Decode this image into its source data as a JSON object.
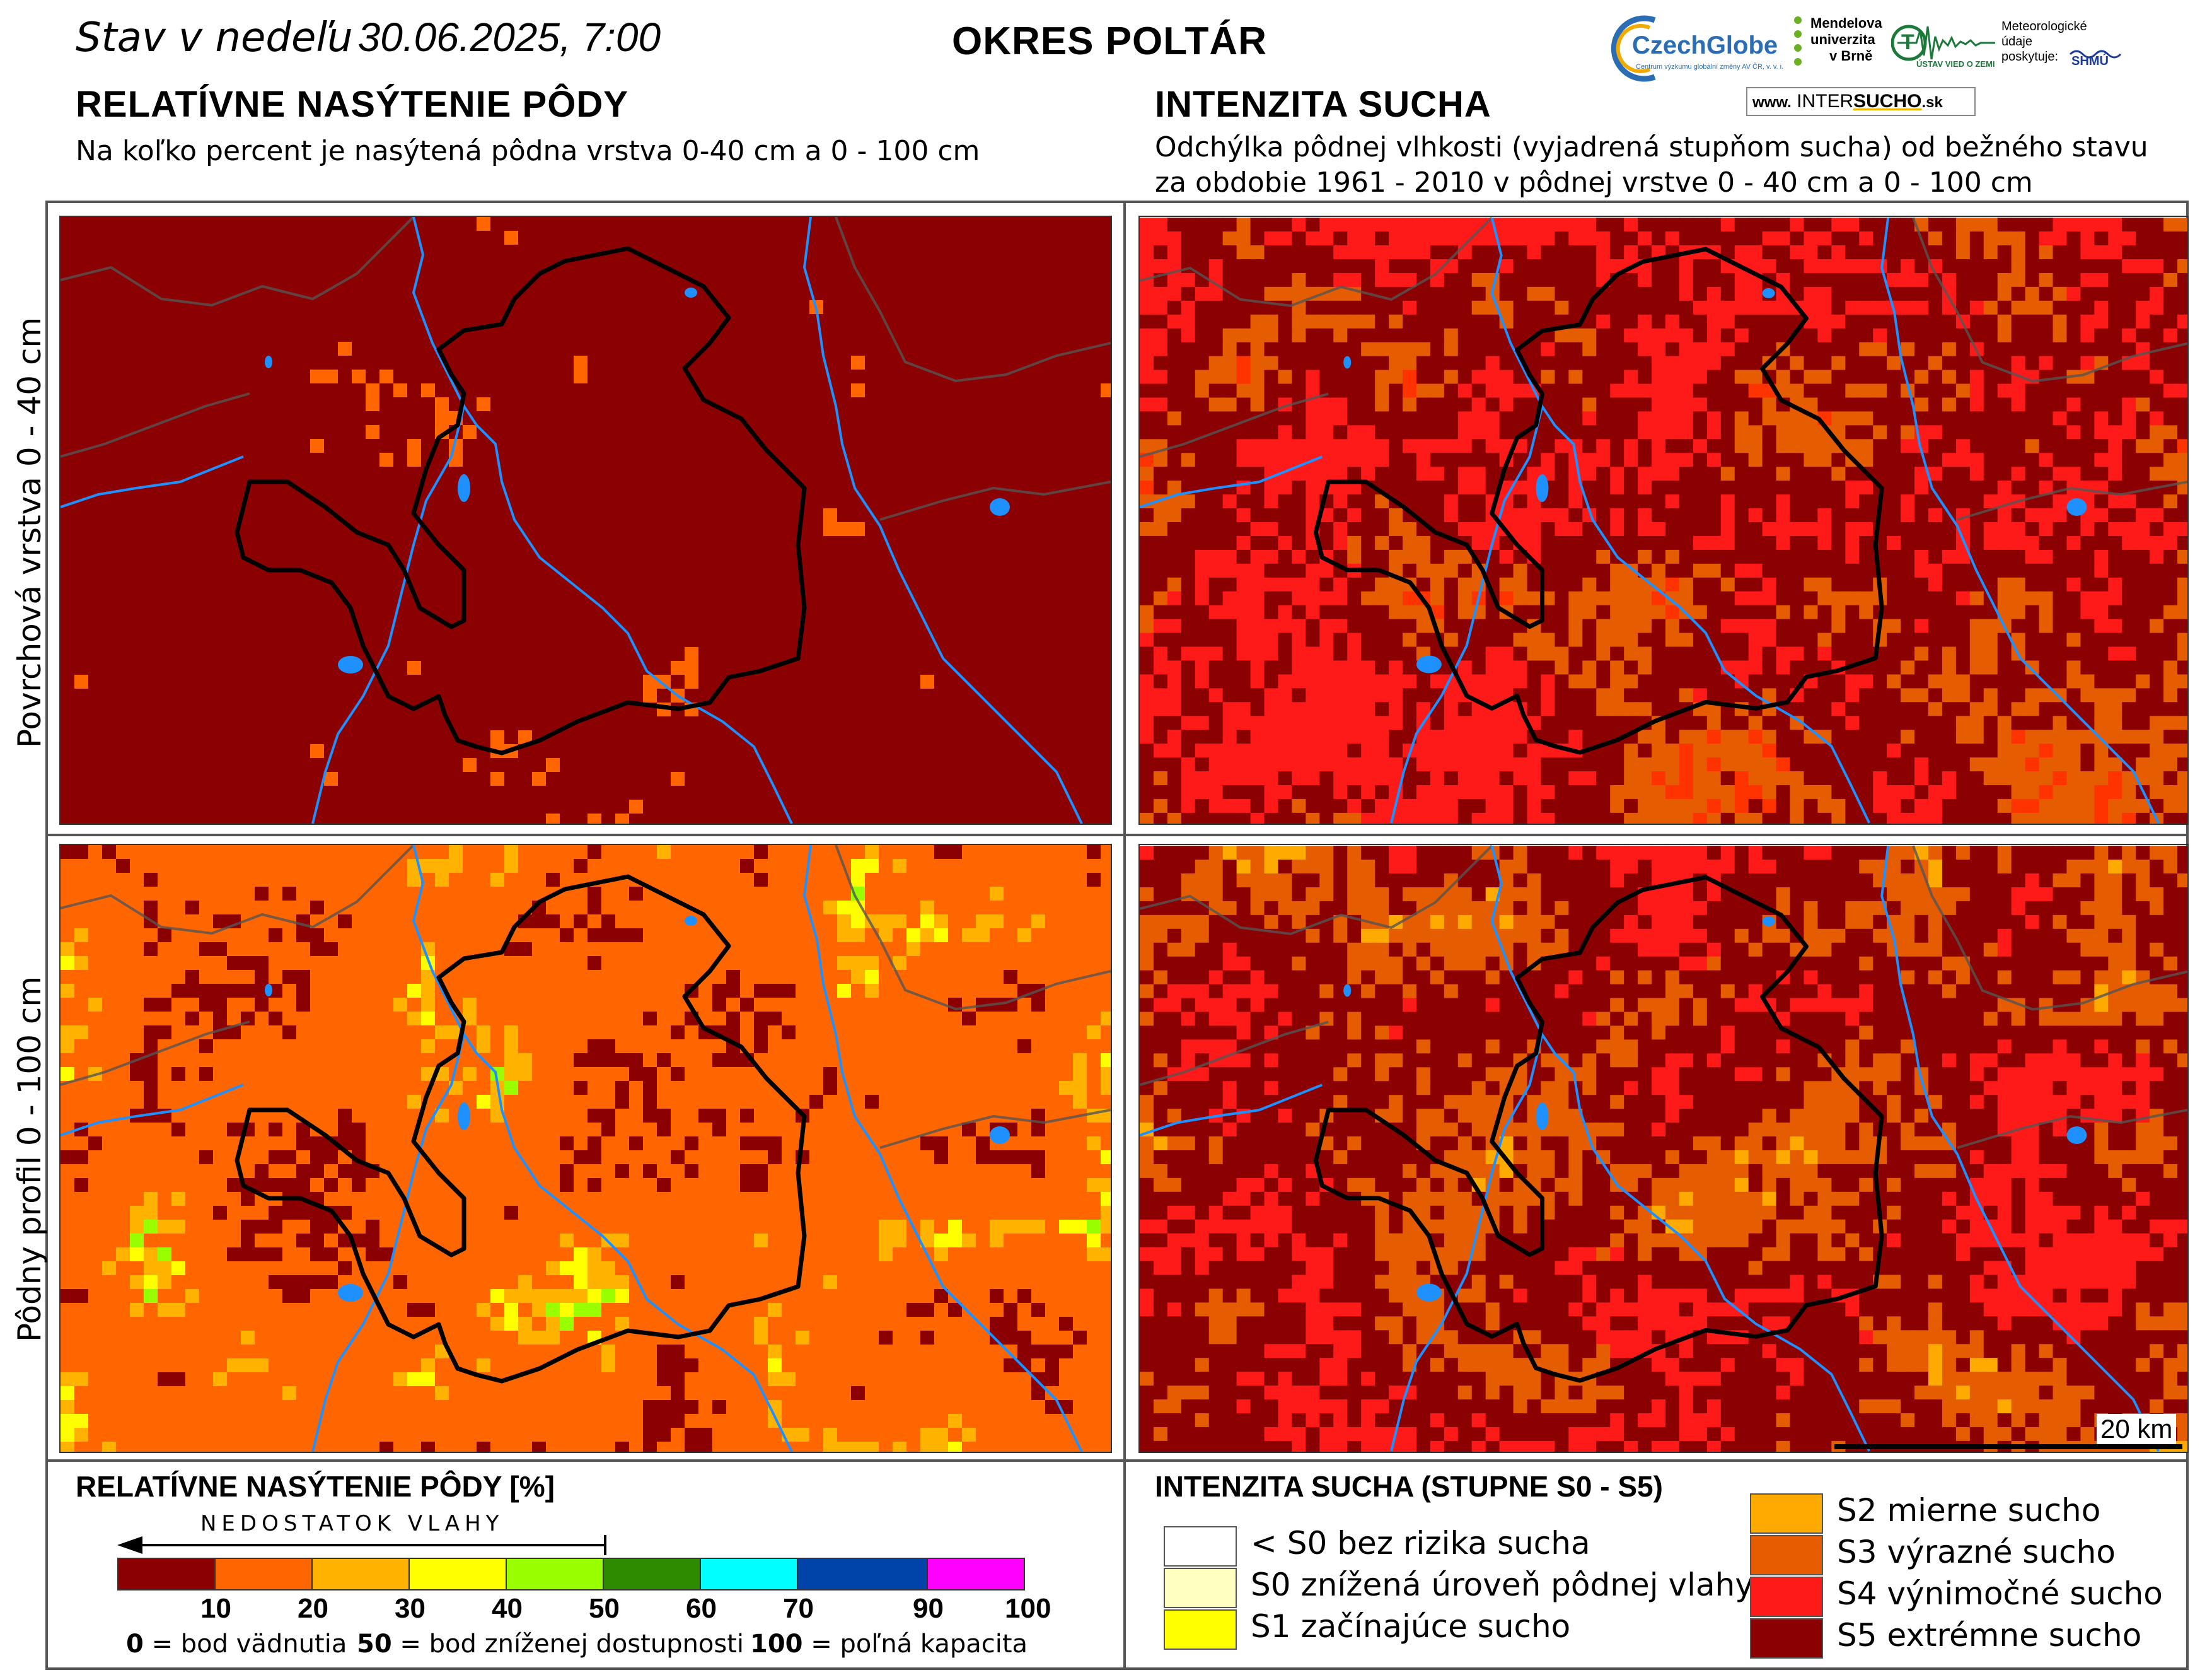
{
  "header": {
    "date_prefix": "Stav v nedeľu",
    "date_value": "30.06.2025, 7:00",
    "district": "OKRES POLTÁR"
  },
  "logos": {
    "czechglobe": "CzechGlobe",
    "czechglobe_sub": "Centrum výzkumu globální změny AV ČR, v. v. i.",
    "mendel_line1": "Mendelova",
    "mendel_line2": "univerzita",
    "mendel_line3": "v Brně",
    "ustav": "ÚSTAV VIED O ZEMI",
    "meteo_line1": "Meteorologické",
    "meteo_line2": "údaje",
    "meteo_line3": "poskytuje:",
    "shmu": "SHMÚ",
    "intersucho_prefix": "www.",
    "intersucho_a": "INTER",
    "intersucho_b": "SUCHO",
    "intersucho_suffix": ".sk"
  },
  "left_section": {
    "title": "RELATÍVNE NASÝTENIE PÔDY",
    "subtitle": "Na koľko percent je nasýtená pôdna vrstva 0-40 cm a 0 - 100 cm"
  },
  "right_section": {
    "title": "INTENZITA SUCHA",
    "subtitle_line1": "Odchýlka pôdnej vlhkosti (vyjadrená stupňom sucha) od bežného stavu",
    "subtitle_line2": "za obdobie 1961 - 2010 v pôdnej vrstve 0 - 40 cm a 0 - 100 cm"
  },
  "rows": {
    "top": "Povrchová vrstva 0 - 40 cm",
    "bottom": "Pôdny profil 0 - 100 cm"
  },
  "scale_bar": "20 km",
  "saturation_legend": {
    "title": "RELATÍVNE NASÝTENIE PÔDY [%]",
    "arrow_label": "NEDOSTATOK VLAHY",
    "colors": [
      "#8b0000",
      "#ff6600",
      "#ffb300",
      "#ffff00",
      "#99ff00",
      "#2e8b00",
      "#00ffff",
      "#0044aa",
      "#ff00ff"
    ],
    "ticks": [
      "10",
      "20",
      "30",
      "40",
      "50",
      "60",
      "70",
      "90",
      "100"
    ],
    "note_0_num": "0",
    "note_0_text": "= bod vädnutia",
    "note_50_num": "50",
    "note_50_text": "= bod zníženej dostupnosti",
    "note_100_num": "100",
    "note_100_text": "= poľná kapacita"
  },
  "drought_legend": {
    "title": "INTENZITA SUCHA (STUPNE S0 - S5)",
    "items": [
      {
        "label": "< S0 bez rizika sucha",
        "color": "#ffffff"
      },
      {
        "label": "S0 znížená úroveň pôdnej vlahy",
        "color": "#ffffc0"
      },
      {
        "label": "S1 začínajúce sucho",
        "color": "#ffff00"
      },
      {
        "label": "S2 mierne sucho",
        "color": "#ffaa00"
      },
      {
        "label": "S3 výrazné sucho",
        "color": "#e65c00"
      },
      {
        "label": "S4 výnimočné sucho",
        "color": "#ff1a1a"
      },
      {
        "label": "S5 extrémne sucho",
        "color": "#8b0000"
      }
    ]
  },
  "map_colors": {
    "river": "#1e90ff",
    "district_border": "#000000",
    "regional_border": "#555555"
  }
}
